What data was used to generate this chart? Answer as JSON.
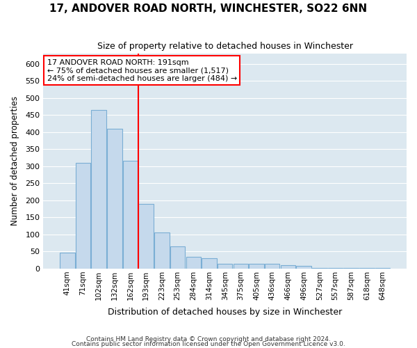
{
  "title": "17, ANDOVER ROAD NORTH, WINCHESTER, SO22 6NN",
  "subtitle": "Size of property relative to detached houses in Winchester",
  "xlabel": "Distribution of detached houses by size in Winchester",
  "ylabel": "Number of detached properties",
  "categories": [
    "41sqm",
    "71sqm",
    "102sqm",
    "132sqm",
    "162sqm",
    "193sqm",
    "223sqm",
    "253sqm",
    "284sqm",
    "314sqm",
    "345sqm",
    "375sqm",
    "405sqm",
    "436sqm",
    "466sqm",
    "496sqm",
    "527sqm",
    "557sqm",
    "587sqm",
    "618sqm",
    "648sqm"
  ],
  "values": [
    46,
    310,
    465,
    410,
    315,
    190,
    105,
    65,
    35,
    30,
    15,
    15,
    15,
    15,
    10,
    8,
    3,
    1,
    1,
    1,
    1
  ],
  "bar_color": "#c5d9ec",
  "bar_edge_color": "#7aaed4",
  "redline_index": 5,
  "annotation_line1": "17 ANDOVER ROAD NORTH: 191sqm",
  "annotation_line2": "← 75% of detached houses are smaller (1,517)",
  "annotation_line3": "24% of semi-detached houses are larger (484) →",
  "ylim_max": 630,
  "yticks": [
    0,
    50,
    100,
    150,
    200,
    250,
    300,
    350,
    400,
    450,
    500,
    550,
    600
  ],
  "plot_bg_color": "#dce8f0",
  "grid_color": "#ffffff",
  "footer_line1": "Contains HM Land Registry data © Crown copyright and database right 2024.",
  "footer_line2": "Contains public sector information licensed under the Open Government Licence v3.0."
}
